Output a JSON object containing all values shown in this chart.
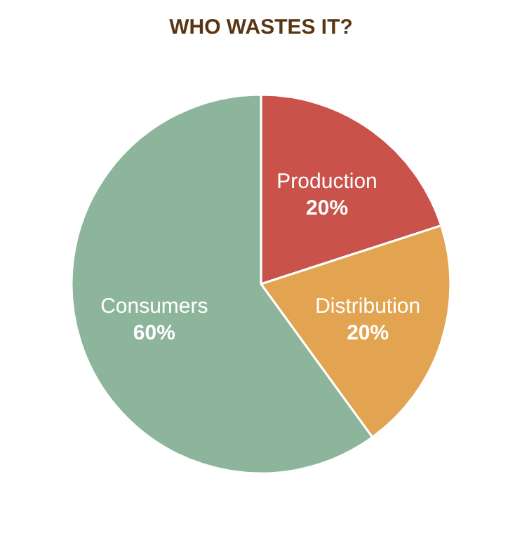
{
  "chart_data": {
    "type": "pie",
    "title": "WHO WASTES IT?",
    "categories": [
      "Production",
      "Distribution",
      "Consumers"
    ],
    "values": [
      20,
      20,
      60
    ],
    "value_labels": [
      "20%",
      "20%",
      "60%"
    ],
    "colors": [
      "#c9534a",
      "#e3a452",
      "#8db59c"
    ],
    "legend": false
  }
}
